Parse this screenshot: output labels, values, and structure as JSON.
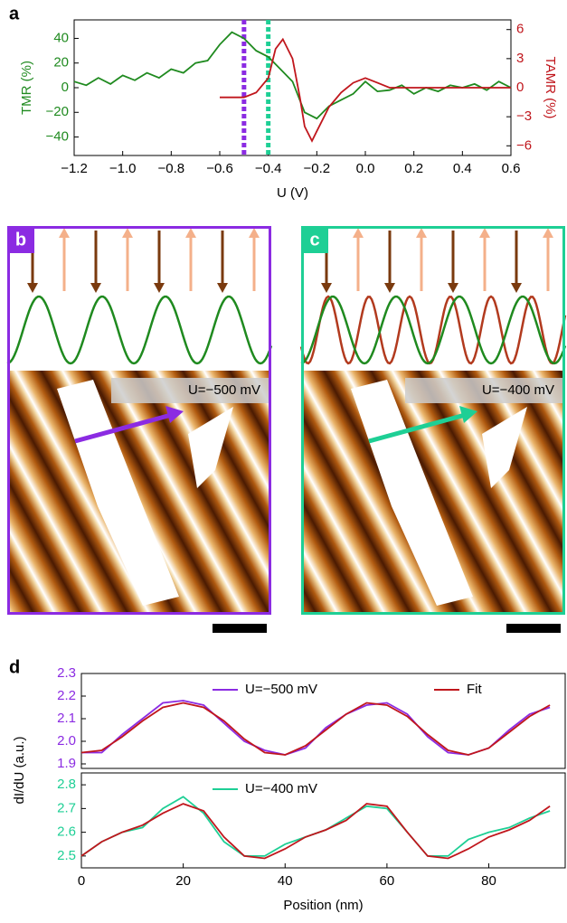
{
  "chart_data": [
    {
      "type": "line",
      "label": "a",
      "xlabel": "U (V)",
      "ylabel": "TMR (%)",
      "y2label": "TAMR (%)",
      "xlim": [
        -1.2,
        0.6
      ],
      "xticks": [
        {
          "value": -1.2,
          "label": "−1.2"
        },
        {
          "value": -1.0,
          "label": "−1.0"
        },
        {
          "value": -0.8,
          "label": "−0.8"
        },
        {
          "value": -0.6,
          "label": "−0.6"
        },
        {
          "value": -0.4,
          "label": "−0.4"
        },
        {
          "value": -0.2,
          "label": "−0.2"
        },
        {
          "value": 0,
          "label": "0.0"
        },
        {
          "value": 0.2,
          "label": "0.2"
        },
        {
          "value": 0.4,
          "label": "0.4"
        },
        {
          "value": 0.6,
          "label": "0.6"
        }
      ],
      "ylim": [
        -55,
        55
      ],
      "yticks": [
        {
          "value": -40,
          "label": "−40"
        },
        {
          "value": -20,
          "label": "−20"
        },
        0,
        20,
        40
      ],
      "y2lim": [
        -7,
        7
      ],
      "y2ticks": [
        {
          "value": -6,
          "label": "−6"
        },
        {
          "value": -3,
          "label": "−3"
        },
        0,
        3,
        6
      ],
      "markers": [
        {
          "x": -0.5,
          "color": "#8b2be2"
        },
        {
          "x": -0.4,
          "color": "#1ecf95"
        }
      ],
      "series": [
        {
          "color": "#1f8a1f",
          "x": [
            -1.2,
            -1.15,
            -1.1,
            -1.05,
            -1.0,
            -0.95,
            -0.9,
            -0.85,
            -0.8,
            -0.75,
            -0.7,
            -0.65,
            -0.6,
            -0.55,
            -0.5,
            -0.45,
            -0.4,
            -0.35,
            -0.3,
            -0.25,
            -0.2,
            -0.15,
            -0.1,
            -0.05,
            0,
            0.05,
            0.1,
            0.15,
            0.2,
            0.25,
            0.3,
            0.35,
            0.4,
            0.45,
            0.5,
            0.55,
            0.6
          ],
          "values": [
            5,
            2,
            8,
            3,
            10,
            6,
            12,
            8,
            15,
            12,
            20,
            22,
            35,
            45,
            40,
            30,
            25,
            15,
            5,
            -20,
            -25,
            -15,
            -10,
            -5,
            5,
            -3,
            -2,
            2,
            -5,
            0,
            -3,
            2,
            0,
            3,
            -2,
            5,
            0
          ]
        },
        {
          "color": "#c0161c",
          "axis": "y2",
          "x": [
            -0.6,
            -0.55,
            -0.5,
            -0.45,
            -0.4,
            -0.37,
            -0.34,
            -0.3,
            -0.27,
            -0.25,
            -0.22,
            -0.2,
            -0.15,
            -0.1,
            -0.05,
            0,
            0.05,
            0.1,
            0.2,
            0.3,
            0.4,
            0.5,
            0.6
          ],
          "values": [
            -1,
            -1,
            -1,
            -0.5,
            1,
            4,
            5,
            3,
            -1,
            -4,
            -5.5,
            -4.5,
            -2,
            -0.5,
            0.5,
            1,
            0.5,
            0,
            0,
            0,
            0,
            0,
            0
          ]
        }
      ]
    },
    {
      "type": "line",
      "label": "d",
      "ylabel": "dI/dU (a.u.)",
      "xlim": [
        0,
        95
      ],
      "ylim": [
        1.88,
        2.3
      ],
      "yticks": [
        {
          "value": 1.9,
          "label": "1.9"
        },
        {
          "value": 2,
          "label": "2.0"
        },
        {
          "value": 2.1,
          "label": "2.1"
        },
        {
          "value": 2.2,
          "label": "2.2"
        },
        {
          "value": 2.3,
          "label": "2.3"
        }
      ],
      "series": [
        {
          "name": "U=−500 mV",
          "color": "#8b2be2",
          "x": [
            0,
            4,
            8,
            12,
            16,
            20,
            24,
            28,
            32,
            36,
            40,
            44,
            48,
            52,
            56,
            60,
            64,
            68,
            72,
            76,
            80,
            84,
            88,
            92
          ],
          "values": [
            1.95,
            1.95,
            2.03,
            2.1,
            2.17,
            2.18,
            2.16,
            2.08,
            2.0,
            1.96,
            1.94,
            1.97,
            2.06,
            2.12,
            2.16,
            2.17,
            2.12,
            2.02,
            1.95,
            1.94,
            1.97,
            2.05,
            2.12,
            2.15
          ]
        },
        {
          "name": "Fit",
          "color": "#c0161c",
          "x": [
            0,
            4,
            8,
            12,
            16,
            20,
            24,
            28,
            32,
            36,
            40,
            44,
            48,
            52,
            56,
            60,
            64,
            68,
            72,
            76,
            80,
            84,
            88,
            92
          ],
          "values": [
            1.95,
            1.96,
            2.02,
            2.09,
            2.15,
            2.17,
            2.15,
            2.09,
            2.01,
            1.95,
            1.94,
            1.98,
            2.05,
            2.12,
            2.17,
            2.16,
            2.11,
            2.03,
            1.96,
            1.94,
            1.97,
            2.04,
            2.11,
            2.16
          ]
        }
      ]
    },
    {
      "type": "line",
      "xlabel": "Position (nm)",
      "xlim": [
        0,
        95
      ],
      "xticks": [
        0,
        20,
        40,
        60,
        80
      ],
      "ylim": [
        2.45,
        2.85
      ],
      "yticks": [
        {
          "value": 2.5,
          "label": "2.5"
        },
        {
          "value": 2.6,
          "label": "2.6"
        },
        {
          "value": 2.7,
          "label": "2.7"
        },
        {
          "value": 2.8,
          "label": "2.8"
        }
      ],
      "series": [
        {
          "name": "U=−400 mV",
          "color": "#1ecf95",
          "x": [
            0,
            4,
            8,
            12,
            16,
            20,
            24,
            28,
            32,
            36,
            40,
            44,
            48,
            52,
            56,
            60,
            64,
            68,
            72,
            76,
            80,
            84,
            88,
            92
          ],
          "values": [
            2.5,
            2.56,
            2.6,
            2.62,
            2.7,
            2.75,
            2.68,
            2.56,
            2.5,
            2.5,
            2.55,
            2.58,
            2.61,
            2.66,
            2.71,
            2.7,
            2.6,
            2.5,
            2.5,
            2.57,
            2.6,
            2.62,
            2.66,
            2.69
          ]
        },
        {
          "color": "#c0161c",
          "x": [
            0,
            4,
            8,
            12,
            16,
            20,
            24,
            28,
            32,
            36,
            40,
            44,
            48,
            52,
            56,
            60,
            64,
            68,
            72,
            76,
            80,
            84,
            88,
            92
          ],
          "values": [
            2.5,
            2.56,
            2.6,
            2.63,
            2.68,
            2.72,
            2.69,
            2.58,
            2.5,
            2.49,
            2.53,
            2.58,
            2.61,
            2.65,
            2.72,
            2.71,
            2.6,
            2.5,
            2.49,
            2.53,
            2.58,
            2.61,
            2.65,
            2.71
          ]
        }
      ]
    }
  ],
  "panels": [
    {
      "label": "b",
      "annotation": "U=−500 mV",
      "color": "#8b2be2"
    },
    {
      "label": "c",
      "annotation": "U=−400 mV",
      "color": "#1ecf95"
    }
  ]
}
